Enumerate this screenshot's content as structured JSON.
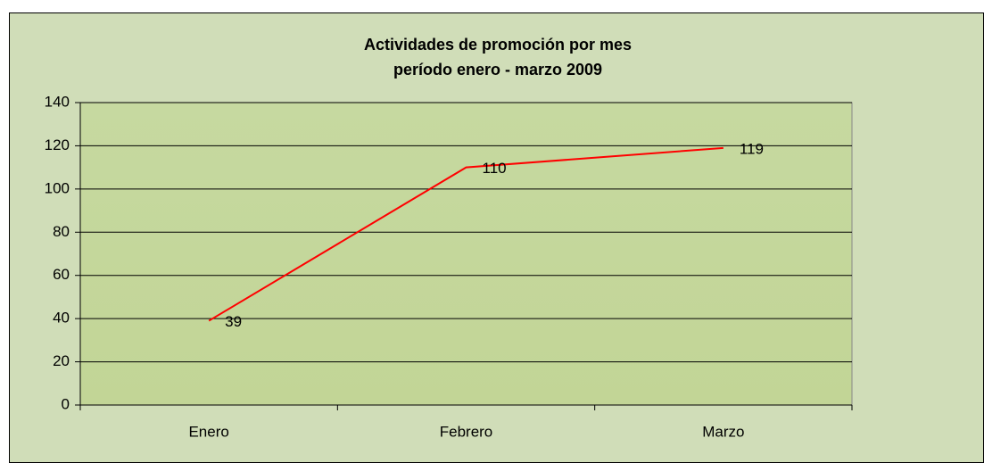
{
  "chart_data": {
    "type": "line",
    "title": [
      "Actividades de promoción por mes",
      "período enero - marzo 2009"
    ],
    "categories": [
      "Enero",
      "Febrero",
      "Marzo"
    ],
    "series": [
      {
        "name": "Actividades",
        "color": "#ff0000",
        "values": [
          39,
          110,
          119
        ]
      }
    ],
    "ylim": [
      0,
      140
    ],
    "yticks": [
      0,
      20,
      40,
      60,
      80,
      100,
      120,
      140
    ],
    "grid": true,
    "legend": false
  }
}
